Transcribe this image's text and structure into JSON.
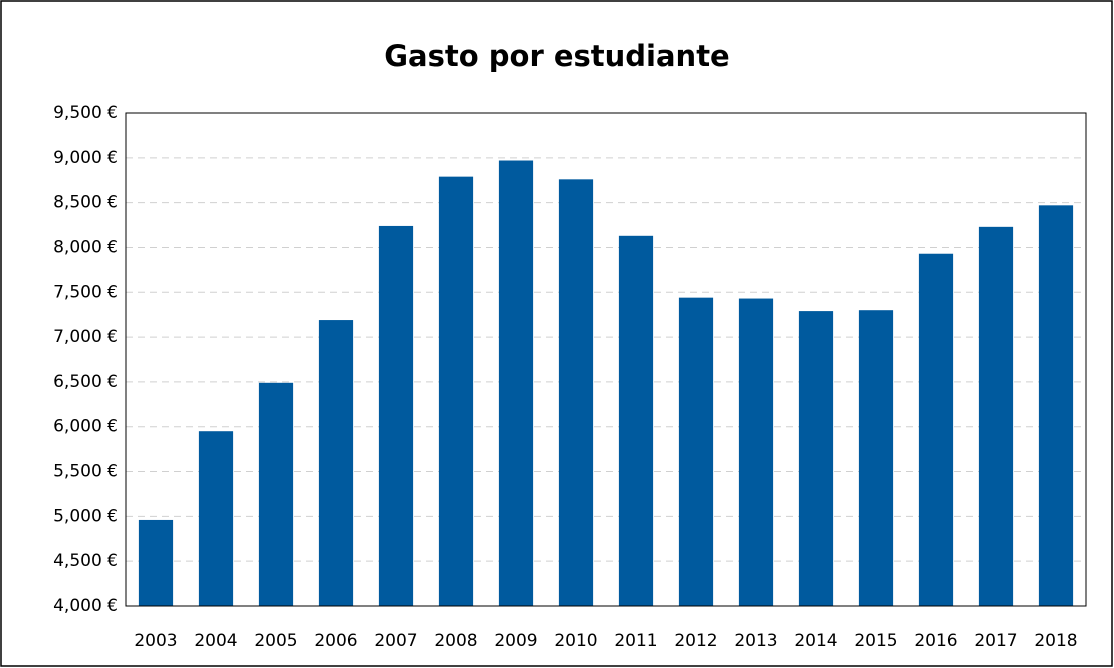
{
  "chart_data": {
    "type": "bar",
    "title": "Gasto por estudiante",
    "categories": [
      "2003",
      "2004",
      "2005",
      "2006",
      "2007",
      "2008",
      "2009",
      "2010",
      "2011",
      "2012",
      "2013",
      "2014",
      "2015",
      "2016",
      "2017",
      "2018"
    ],
    "values": [
      4960,
      5950,
      6490,
      7190,
      8240,
      8790,
      8970,
      8760,
      8130,
      7440,
      7430,
      7290,
      7300,
      7930,
      8230,
      8470
    ],
    "color": "#005a9e",
    "ylim": [
      4000,
      9500
    ],
    "yticks": [
      {
        "value": 4000,
        "label": "4,000 €"
      },
      {
        "value": 4500,
        "label": "4,500 €"
      },
      {
        "value": 5000,
        "label": "5,000 €"
      },
      {
        "value": 5500,
        "label": "5,500 €"
      },
      {
        "value": 6000,
        "label": "6,000 €"
      },
      {
        "value": 6500,
        "label": "6,500 €"
      },
      {
        "value": 7000,
        "label": "7,000 €"
      },
      {
        "value": 7500,
        "label": "7,500 €"
      },
      {
        "value": 8000,
        "label": "8,000 €"
      },
      {
        "value": 8500,
        "label": "8,500 €"
      },
      {
        "value": 9000,
        "label": "9,000 €"
      },
      {
        "value": 9500,
        "label": "9,500 €"
      }
    ],
    "grid": true
  }
}
